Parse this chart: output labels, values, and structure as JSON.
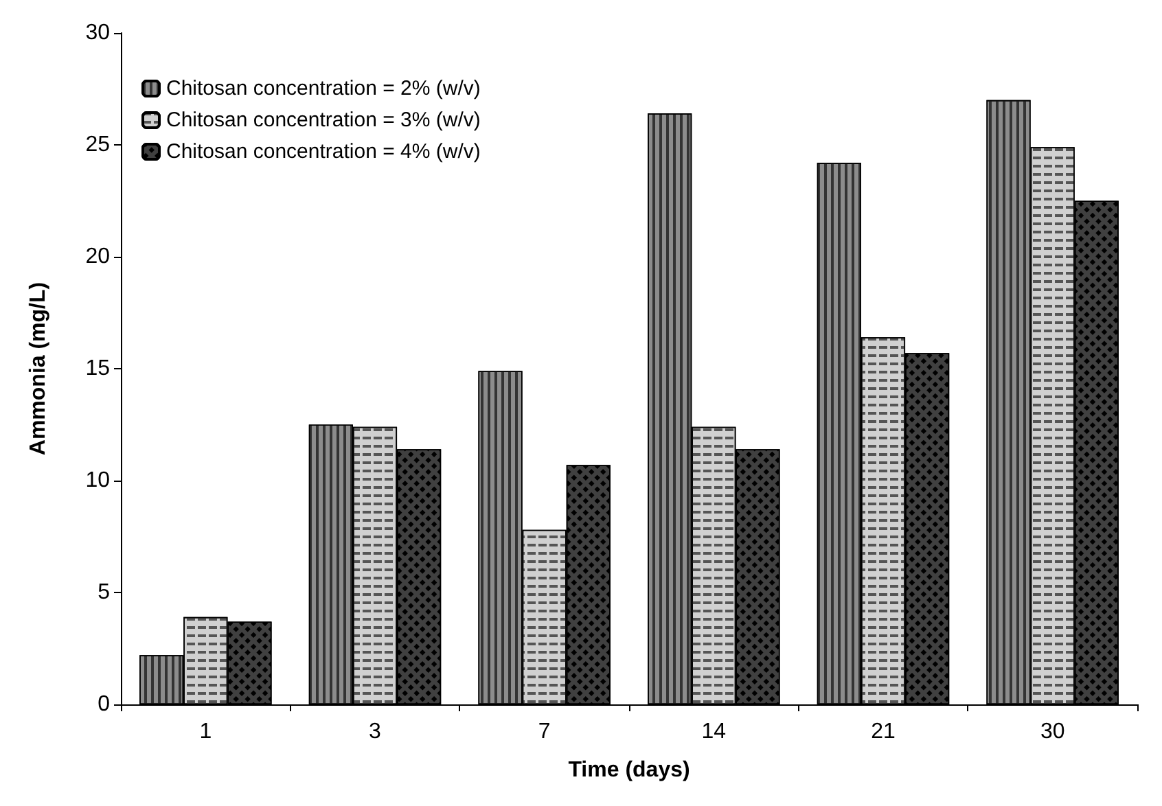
{
  "chart_data": {
    "type": "bar",
    "xlabel": "Time (days)",
    "ylabel": "Ammonia (mg/L)",
    "categories": [
      "1",
      "3",
      "7",
      "14",
      "21",
      "30"
    ],
    "series": [
      {
        "name": "Chitosan concentration = 2% (w/v)",
        "color": "#8c8c8c",
        "values": [
          2.2,
          12.5,
          14.9,
          26.4,
          24.2,
          27.0
        ]
      },
      {
        "name": "Chitosan concentration = 3% (w/v)",
        "color": "#d0d0d0",
        "values": [
          3.9,
          12.4,
          7.8,
          12.4,
          16.4,
          24.9
        ]
      },
      {
        "name": "Chitosan concentration = 4% (w/v)",
        "color": "#404040",
        "values": [
          3.7,
          11.4,
          10.7,
          11.4,
          15.7,
          22.5
        ]
      }
    ],
    "ylim": [
      0,
      30
    ],
    "yticks": [
      0,
      5,
      10,
      15,
      20,
      25,
      30
    ],
    "grid": false,
    "legend": "top left"
  }
}
